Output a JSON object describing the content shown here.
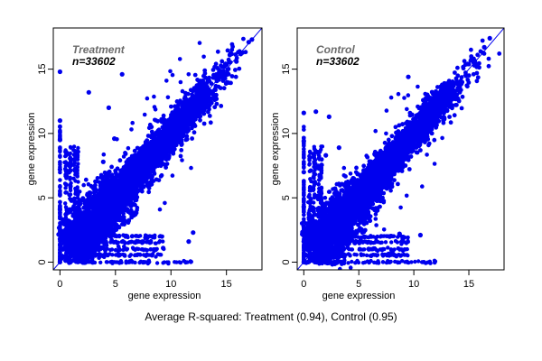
{
  "caption": "Average R-squared: Treatment (0.94), Control (0.95)",
  "colors": {
    "points": "#0000ee",
    "line": "#0000ee",
    "frame": "#000000"
  },
  "chart_data": [
    {
      "type": "scatter",
      "title": "",
      "annotation_label": "Treatment",
      "annotation_n": "n=33602",
      "xlabel": "gene expression",
      "ylabel": "gene expression",
      "xlim": [
        -0.6,
        18.2
      ],
      "ylim": [
        -0.6,
        18.2
      ],
      "xticks": [
        0,
        5,
        10,
        15
      ],
      "yticks": [
        0,
        5,
        10,
        15
      ],
      "grid": false,
      "reference_line": {
        "slope": 1,
        "intercept": 0
      },
      "n_points": 33602,
      "r_squared": 0.94,
      "seed": 11,
      "points": [
        [
          0,
          0
        ],
        [
          0,
          11
        ],
        [
          0,
          14.8
        ],
        [
          0,
          9.5
        ],
        [
          0,
          7.2
        ],
        [
          0,
          4.1
        ],
        [
          0,
          1.8
        ],
        [
          17.3,
          17.3
        ],
        [
          17.0,
          17.1
        ],
        [
          15.9,
          15.6
        ],
        [
          15.3,
          16.1
        ],
        [
          5.6,
          14.6
        ],
        [
          2.6,
          13.2
        ],
        [
          4.4,
          12.0
        ],
        [
          12.0,
          2.3
        ],
        [
          11.6,
          1.6
        ],
        [
          9.3,
          1.1
        ],
        [
          7.7,
          1.9
        ],
        [
          3.9,
          7.8
        ],
        [
          4.9,
          9.6
        ],
        [
          14.9,
          15.4
        ]
      ]
    },
    {
      "type": "scatter",
      "title": "",
      "annotation_label": "Control",
      "annotation_n": "n=33602",
      "xlabel": "gene expression",
      "ylabel": "gene expression",
      "xlim": [
        -0.6,
        18.2
      ],
      "ylim": [
        -0.6,
        18.2
      ],
      "xticks": [
        0,
        5,
        10,
        15
      ],
      "yticks": [
        0,
        5,
        10,
        15
      ],
      "grid": false,
      "reference_line": {
        "slope": 1,
        "intercept": 0
      },
      "n_points": 33602,
      "r_squared": 0.95,
      "seed": 27,
      "points": [
        [
          0,
          0
        ],
        [
          0,
          11.6
        ],
        [
          0,
          9.4
        ],
        [
          0,
          7.0
        ],
        [
          0,
          4.3
        ],
        [
          0,
          1.6
        ],
        [
          16.9,
          17.4
        ],
        [
          16.4,
          16.7
        ],
        [
          15.5,
          15.3
        ],
        [
          14.9,
          15.4
        ],
        [
          9.5,
          14.4
        ],
        [
          1.1,
          11.7
        ],
        [
          2.3,
          11.3
        ],
        [
          9.0,
          1.8
        ],
        [
          10.6,
          2.1
        ],
        [
          8.7,
          2.2
        ],
        [
          2.0,
          8.3
        ],
        [
          3.2,
          8.9
        ]
      ]
    }
  ]
}
